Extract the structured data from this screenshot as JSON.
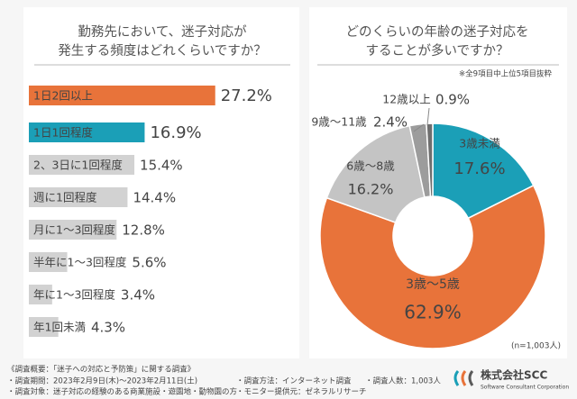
{
  "chart_data": [
    {
      "type": "bar",
      "orientation": "horizontal",
      "title": [
        "勤務先において、迷子対応が",
        "発生する頻度はどれくらいですか？"
      ],
      "categories": [
        "1日2回以上",
        "1日1回程度",
        "2、3日に1回程度",
        "週に1回程度",
        "月に1～3回程度",
        "半年に1～3回程度",
        "年に1～3回程度",
        "年1回未満"
      ],
      "values": [
        27.2,
        16.9,
        15.4,
        14.4,
        12.8,
        5.6,
        3.4,
        4.3
      ],
      "value_labels": [
        "27.2%",
        "16.9%",
        "15.4%",
        "14.4%",
        "12.8%",
        "5.6%",
        "3.4%",
        "4.3%"
      ],
      "colors": [
        "#e8733a",
        "#1b9fb7",
        "#d2d2d2",
        "#d2d2d2",
        "#d2d2d2",
        "#d2d2d2",
        "#d2d2d2",
        "#d2d2d2"
      ]
    },
    {
      "type": "pie",
      "donut": true,
      "title": [
        "どのくらいの年齢の迷子対応を",
        "することが多いですか？"
      ],
      "subtitle": "※全9項目中上位5項目抜粋",
      "categories": [
        "3歳未満",
        "3歳～5歳",
        "6歳～8歳",
        "9歳～11歳",
        "12歳以上"
      ],
      "values": [
        17.6,
        62.9,
        16.2,
        2.4,
        0.9
      ],
      "value_labels": [
        "17.6%",
        "62.9%",
        "16.2%",
        "2.4%",
        "0.9%"
      ],
      "colors": [
        "#1b9fb7",
        "#e8733a",
        "#c4c4c4",
        "#9c9c9c",
        "#6e6e6e"
      ],
      "note": "(n=1,003人)"
    }
  ],
  "footer": {
    "heading": "《調査概要：「迷子への対応と予防策」に関する調査》",
    "items": [
      "・調査期間：2023年2月9日(木)～2023年2月11日(土)",
      "・調査方法：インターネット調査",
      "・調査人数：1,003人",
      "・調査対象：迷子対応の経験のある商業施設・遊園地・動物園の方",
      "・モニター提供元：ゼネラルリサーチ"
    ]
  },
  "logo": {
    "name": "株式会社SCC",
    "tagline": "Software Consultant Corporation"
  }
}
